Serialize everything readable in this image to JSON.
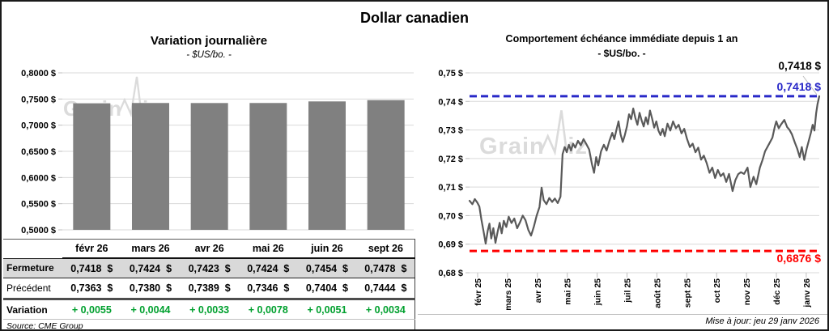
{
  "title": "Dollar canadien",
  "watermark": "GrainWiz",
  "left_chart": {
    "title": "Variation journalière",
    "subtitle": "- $US/bo. -"
  },
  "right_chart": {
    "title": "Comportement échéance immédiate depuis 1 an",
    "subtitle": "- $US/bo. -"
  },
  "source": "Source: CME Group",
  "updated": "Mise à jour: jeu 29 janv 2026",
  "colors": {
    "bar": "#808080",
    "line": "#595959",
    "blue": "#2828C8",
    "red": "#FF0000",
    "green": "#00A02E",
    "grid": "#D9D9D9",
    "tick": "#BFBFBF",
    "watermark": "#DBDBDB",
    "table_band": "#D9D9D9",
    "leader": "#BFBFBF"
  },
  "chart_data": [
    {
      "type": "bar",
      "title": "Variation journalière",
      "xlabel": "",
      "ylabel": "",
      "categories": [
        "févr 26",
        "mars 26",
        "avr 26",
        "mai 26",
        "juin 26",
        "sept 26"
      ],
      "values": [
        0.7418,
        0.7424,
        0.7423,
        0.7424,
        0.7454,
        0.7478
      ],
      "ylim": [
        0.5,
        0.8
      ],
      "grid": true,
      "yticks": [
        {
          "v": 0.8,
          "label": "0,8000 $"
        },
        {
          "v": 0.75,
          "label": "0,7500 $"
        },
        {
          "v": 0.7,
          "label": "0,7000 $"
        },
        {
          "v": 0.65,
          "label": "0,6500 $"
        },
        {
          "v": 0.6,
          "label": "0,6000 $"
        },
        {
          "v": 0.55,
          "label": "0,5500 $"
        },
        {
          "v": 0.5,
          "label": "0,5000 $"
        }
      ]
    },
    {
      "type": "line",
      "title": "Comportement échéance immédiate depuis 1 an",
      "xlabel": "",
      "ylabel": "",
      "x_ticks": [
        "févr 25",
        "mars 25",
        "avr 25",
        "mai 25",
        "juin 25",
        "juil 25",
        "août 25",
        "sept 25",
        "oct 25",
        "nov 25",
        "déc 25",
        "janv 26"
      ],
      "ylim": [
        0.68,
        0.75
      ],
      "grid": true,
      "yticks": [
        {
          "v": 0.75,
          "label": "0,75 $"
        },
        {
          "v": 0.74,
          "label": "0,74 $"
        },
        {
          "v": 0.73,
          "label": "0,73 $"
        },
        {
          "v": 0.72,
          "label": "0,72 $"
        },
        {
          "v": 0.71,
          "label": "0,71 $"
        },
        {
          "v": 0.7,
          "label": "0,70 $"
        },
        {
          "v": 0.69,
          "label": "0,69 $"
        },
        {
          "v": 0.68,
          "label": "0,68 $"
        }
      ],
      "end_label": "0,7418 $",
      "ref_lines": [
        {
          "value": 0.7418,
          "label": "0,7418 $",
          "color": "#2828C8",
          "style": "dashed"
        },
        {
          "value": 0.6876,
          "label": "0,6876 $",
          "color": "#FF0000",
          "style": "dashed"
        }
      ],
      "series": [
        {
          "name": "échéance immédiate",
          "points": [
            [
              0.0,
              0.7052
            ],
            [
              0.008,
              0.704
            ],
            [
              0.015,
              0.7058
            ],
            [
              0.022,
              0.7046
            ],
            [
              0.028,
              0.7032
            ],
            [
              0.034,
              0.6985
            ],
            [
              0.04,
              0.6945
            ],
            [
              0.046,
              0.6902
            ],
            [
              0.052,
              0.6948
            ],
            [
              0.057,
              0.6972
            ],
            [
              0.062,
              0.692
            ],
            [
              0.068,
              0.6956
            ],
            [
              0.074,
              0.6905
            ],
            [
              0.08,
              0.6942
            ],
            [
              0.086,
              0.6975
            ],
            [
              0.092,
              0.6938
            ],
            [
              0.098,
              0.6982
            ],
            [
              0.105,
              0.696
            ],
            [
              0.112,
              0.6996
            ],
            [
              0.12,
              0.6974
            ],
            [
              0.128,
              0.699
            ],
            [
              0.136,
              0.6956
            ],
            [
              0.144,
              0.6976
            ],
            [
              0.152,
              0.7
            ],
            [
              0.16,
              0.6984
            ],
            [
              0.168,
              0.695
            ],
            [
              0.176,
              0.693
            ],
            [
              0.184,
              0.6962
            ],
            [
              0.192,
              0.7
            ],
            [
              0.2,
              0.703
            ],
            [
              0.206,
              0.7098
            ],
            [
              0.212,
              0.7054
            ],
            [
              0.22,
              0.704
            ],
            [
              0.228,
              0.7062
            ],
            [
              0.236,
              0.7048
            ],
            [
              0.244,
              0.706
            ],
            [
              0.252,
              0.7044
            ],
            [
              0.26,
              0.7066
            ],
            [
              0.266,
              0.7215
            ],
            [
              0.272,
              0.724
            ],
            [
              0.278,
              0.7222
            ],
            [
              0.284,
              0.7248
            ],
            [
              0.29,
              0.7228
            ],
            [
              0.296,
              0.7252
            ],
            [
              0.302,
              0.7238
            ],
            [
              0.31,
              0.7262
            ],
            [
              0.318,
              0.7246
            ],
            [
              0.326,
              0.7268
            ],
            [
              0.334,
              0.725
            ],
            [
              0.342,
              0.7232
            ],
            [
              0.35,
              0.718
            ],
            [
              0.356,
              0.715
            ],
            [
              0.362,
              0.7205
            ],
            [
              0.368,
              0.7176
            ],
            [
              0.376,
              0.7225
            ],
            [
              0.384,
              0.7248
            ],
            [
              0.392,
              0.7228
            ],
            [
              0.4,
              0.7262
            ],
            [
              0.408,
              0.729
            ],
            [
              0.414,
              0.7268
            ],
            [
              0.42,
              0.73
            ],
            [
              0.426,
              0.733
            ],
            [
              0.432,
              0.7284
            ],
            [
              0.438,
              0.7258
            ],
            [
              0.444,
              0.7282
            ],
            [
              0.45,
              0.7312
            ],
            [
              0.456,
              0.7355
            ],
            [
              0.462,
              0.7338
            ],
            [
              0.468,
              0.7375
            ],
            [
              0.474,
              0.7342
            ],
            [
              0.48,
              0.7318
            ],
            [
              0.486,
              0.736
            ],
            [
              0.492,
              0.7334
            ],
            [
              0.498,
              0.7312
            ],
            [
              0.504,
              0.7344
            ],
            [
              0.51,
              0.732
            ],
            [
              0.516,
              0.7368
            ],
            [
              0.522,
              0.734
            ],
            [
              0.528,
              0.7308
            ],
            [
              0.534,
              0.733
            ],
            [
              0.54,
              0.7298
            ],
            [
              0.546,
              0.7282
            ],
            [
              0.552,
              0.7304
            ],
            [
              0.558,
              0.7278
            ],
            [
              0.566,
              0.7322
            ],
            [
              0.574,
              0.7298
            ],
            [
              0.582,
              0.733
            ],
            [
              0.59,
              0.7306
            ],
            [
              0.598,
              0.7318
            ],
            [
              0.606,
              0.7288
            ],
            [
              0.614,
              0.7304
            ],
            [
              0.622,
              0.7268
            ],
            [
              0.63,
              0.724
            ],
            [
              0.638,
              0.7252
            ],
            [
              0.646,
              0.7222
            ],
            [
              0.654,
              0.7238
            ],
            [
              0.662,
              0.7196
            ],
            [
              0.67,
              0.721
            ],
            [
              0.678,
              0.7184
            ],
            [
              0.686,
              0.715
            ],
            [
              0.694,
              0.7168
            ],
            [
              0.702,
              0.7132
            ],
            [
              0.71,
              0.716
            ],
            [
              0.718,
              0.7138
            ],
            [
              0.726,
              0.7148
            ],
            [
              0.734,
              0.7118
            ],
            [
              0.742,
              0.7146
            ],
            [
              0.752,
              0.7086
            ],
            [
              0.76,
              0.7124
            ],
            [
              0.768,
              0.7145
            ],
            [
              0.776,
              0.7152
            ],
            [
              0.785,
              0.7146
            ],
            [
              0.795,
              0.7168
            ],
            [
              0.803,
              0.71
            ],
            [
              0.812,
              0.7136
            ],
            [
              0.82,
              0.711
            ],
            [
              0.83,
              0.7168
            ],
            [
              0.838,
              0.7196
            ],
            [
              0.845,
              0.7225
            ],
            [
              0.856,
              0.725
            ],
            [
              0.866,
              0.7273
            ],
            [
              0.873,
              0.7312
            ],
            [
              0.877,
              0.733
            ],
            [
              0.884,
              0.7306
            ],
            [
              0.89,
              0.7318
            ],
            [
              0.9,
              0.7335
            ],
            [
              0.908,
              0.731
            ],
            [
              0.915,
              0.73
            ],
            [
              0.922,
              0.7284
            ],
            [
              0.93,
              0.7256
            ],
            [
              0.937,
              0.7234
            ],
            [
              0.944,
              0.7205
            ],
            [
              0.95,
              0.724
            ],
            [
              0.957,
              0.7195
            ],
            [
              0.964,
              0.7234
            ],
            [
              0.97,
              0.7262
            ],
            [
              0.976,
              0.729
            ],
            [
              0.981,
              0.7318
            ],
            [
              0.986,
              0.7298
            ],
            [
              0.991,
              0.7358
            ],
            [
              0.995,
              0.739
            ],
            [
              1.0,
              0.7418
            ]
          ]
        }
      ]
    }
  ],
  "table": {
    "corner": "",
    "rows": [
      {
        "label": "Fermeture",
        "kind": "close",
        "cells": [
          "0,7418  $",
          "0,7424  $",
          "0,7423  $",
          "0,7424  $",
          "0,7454  $",
          "0,7478  $"
        ]
      },
      {
        "label": "Précédent",
        "kind": "prev",
        "cells": [
          "0,7363  $",
          "0,7380  $",
          "0,7389  $",
          "0,7346  $",
          "0,7404  $",
          "0,7444  $"
        ]
      },
      {
        "label": "Variation",
        "kind": "var",
        "cells": [
          "+ 0,0055",
          "+ 0,0044",
          "+ 0,0033",
          "+ 0,0078",
          "+ 0,0051",
          "+ 0,0034"
        ]
      }
    ]
  }
}
